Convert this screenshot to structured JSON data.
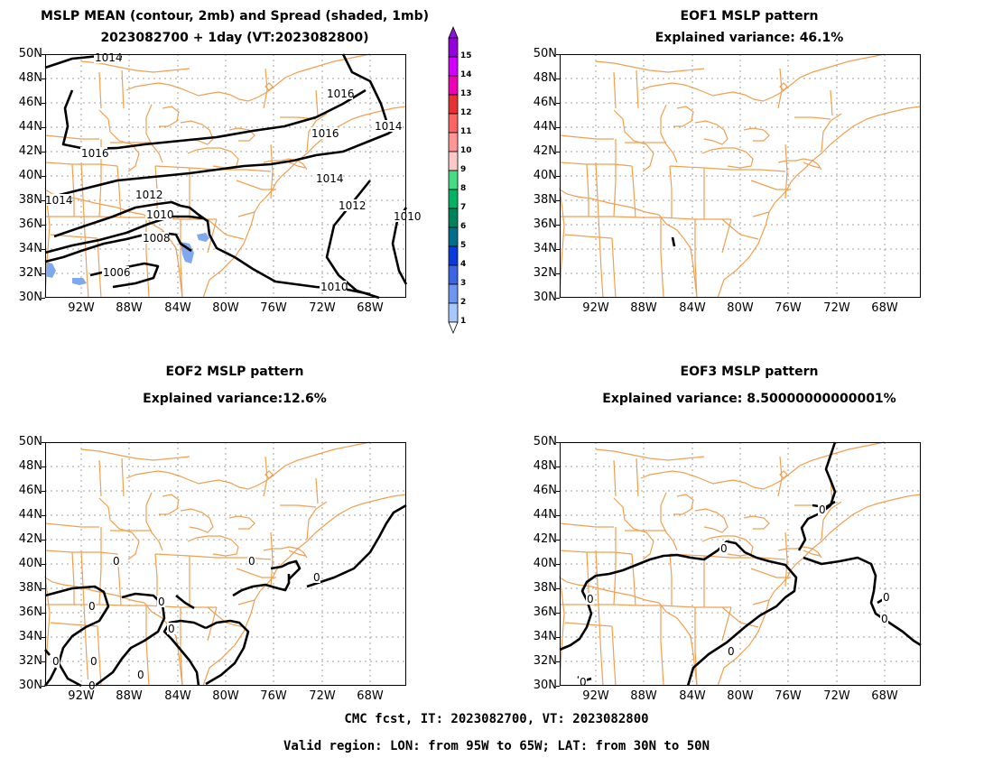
{
  "titles": {
    "p1_line1": "MSLP MEAN (contour, 2mb) and Spread (shaded, 1mb)",
    "p1_line2": "2023082700 + 1day (VT:2023082800)",
    "p2_line1": "EOF1 MSLP pattern",
    "p2_line2": "Explained variance: 46.1%",
    "p3_line1": "EOF2 MSLP pattern",
    "p3_line2": "Explained variance:12.6%",
    "p4_line1": "EOF3 MSLP pattern",
    "p4_line2": "Explained variance: 8.50000000000001%"
  },
  "axes": {
    "lat_labels": [
      "50N",
      "48N",
      "46N",
      "44N",
      "42N",
      "40N",
      "38N",
      "36N",
      "34N",
      "32N",
      "30N"
    ],
    "lon_labels": [
      "92W",
      "88W",
      "84W",
      "80W",
      "76W",
      "72W",
      "68W"
    ]
  },
  "colorbar": {
    "labels": [
      "1",
      "2",
      "3",
      "4",
      "5",
      "6",
      "7",
      "8",
      "9",
      "10",
      "11",
      "12",
      "13",
      "14",
      "15"
    ],
    "colors": [
      "#a6c8ff",
      "#6e96f0",
      "#3c64e6",
      "#0a3cdc",
      "#006e8c",
      "#00825a",
      "#00b464",
      "#46dc82",
      "#ffc8c8",
      "#ff9696",
      "#ff6464",
      "#e63232",
      "#f000b4",
      "#d200ff",
      "#9600dc"
    ]
  },
  "contour_labels": {
    "p1": [
      "1014",
      "1016",
      "1016",
      "1016",
      "1014",
      "1014",
      "1012",
      "1012",
      "1010",
      "1010",
      "1008",
      "1006",
      "1014",
      "1010"
    ],
    "p3": [
      "0",
      "0",
      "0",
      "0",
      "0",
      "0",
      "0",
      "0",
      "0",
      "0"
    ],
    "p4": [
      "0",
      "0",
      "0",
      "0",
      "0",
      "0",
      "0"
    ]
  },
  "footer": {
    "line1": "CMC fcst, IT: 2023082700, VT: 2023082800",
    "line2": "Valid region: LON: from 95W to 65W; LAT: from 30N to 50N"
  },
  "colors": {
    "coast": "#f0a050",
    "grid": "#a0a0a0",
    "contour": "#000000"
  }
}
